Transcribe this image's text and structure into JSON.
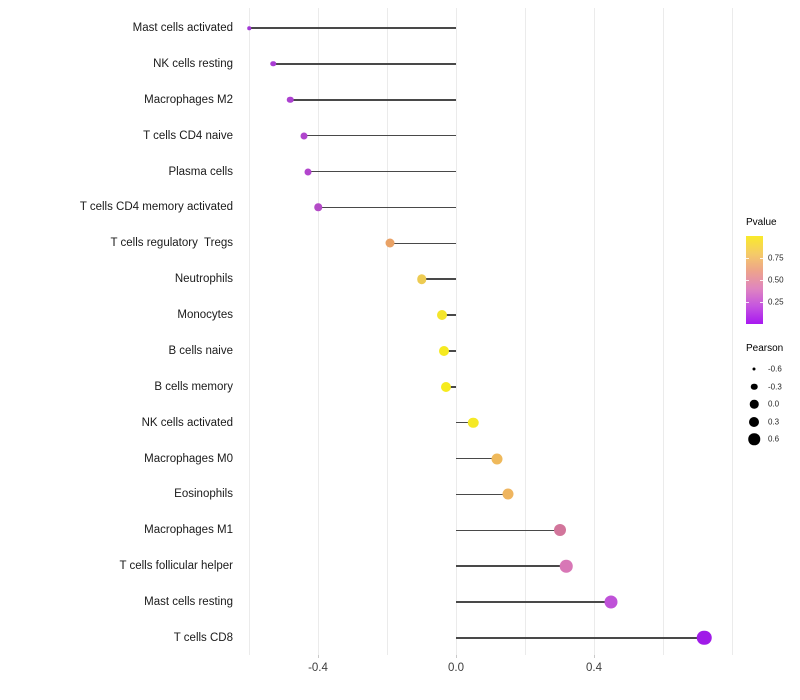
{
  "chart_data": {
    "type": "scatter",
    "variant": "lollipop",
    "title": "",
    "xlabel": "",
    "ylabel": "",
    "grid": "on",
    "xlim": [
      -0.67,
      0.84
    ],
    "x_ticks": [
      "-0.4",
      "0.0",
      "0.4"
    ],
    "x_tick_values": [
      -0.4,
      0.0,
      0.4
    ],
    "x_gridline_values": [
      -0.6,
      -0.4,
      -0.2,
      0.0,
      0.2,
      0.4,
      0.6,
      0.8
    ],
    "baseline_value": 0.0,
    "stem_color": "#3a3a3a",
    "categories": [
      "Mast cells activated",
      "NK cells resting",
      "Macrophages M2",
      "T cells CD4 naive",
      "Plasma cells",
      "T cells CD4 memory activated",
      "T cells regulatory  Tregs",
      "Neutrophils",
      "Monocytes",
      "B cells naive",
      "B cells memory",
      "NK cells activated",
      "Macrophages M0",
      "Eosinophils",
      "Macrophages M1",
      "T cells follicular helper",
      "Mast cells resting",
      "T cells CD8"
    ],
    "points": [
      {
        "label": "Mast cells activated",
        "pearson": -0.6,
        "color": "#A238D6",
        "size": 3.5
      },
      {
        "label": "NK cells resting",
        "pearson": -0.53,
        "color": "#A93CD3",
        "size": 5.5
      },
      {
        "label": "Macrophages M2",
        "pearson": -0.48,
        "color": "#AC40D0",
        "size": 6.5
      },
      {
        "label": "T cells CD4 naive",
        "pearson": -0.44,
        "color": "#B045CD",
        "size": 7
      },
      {
        "label": "Plasma cells",
        "pearson": -0.43,
        "color": "#B245CD",
        "size": 7
      },
      {
        "label": "T cells CD4 memory activated",
        "pearson": -0.4,
        "color": "#B44BC7",
        "size": 7.5
      },
      {
        "label": "T cells regulatory  Tregs",
        "pearson": -0.19,
        "color": "#E9A266",
        "size": 9
      },
      {
        "label": "Neutrophils",
        "pearson": -0.1,
        "color": "#EDCB52",
        "size": 9.5
      },
      {
        "label": "Monocytes",
        "pearson": -0.04,
        "color": "#F4E52B",
        "size": 10
      },
      {
        "label": "B cells naive",
        "pearson": -0.035,
        "color": "#F6EA20",
        "size": 10
      },
      {
        "label": "B cells memory",
        "pearson": -0.03,
        "color": "#F6EB1E",
        "size": 10
      },
      {
        "label": "NK cells activated",
        "pearson": 0.05,
        "color": "#F5E926",
        "size": 10.5
      },
      {
        "label": "Macrophages M0",
        "pearson": 0.12,
        "color": "#EFB95B",
        "size": 11
      },
      {
        "label": "Eosinophils",
        "pearson": 0.15,
        "color": "#EFB55F",
        "size": 11
      },
      {
        "label": "Macrophages M1",
        "pearson": 0.3,
        "color": "#D2759B",
        "size": 12
      },
      {
        "label": "T cells follicular helper",
        "pearson": 0.32,
        "color": "#D877B6",
        "size": 12.5
      },
      {
        "label": "Mast cells resting",
        "pearson": 0.45,
        "color": "#BF52D8",
        "size": 13
      },
      {
        "label": "T cells CD8",
        "pearson": 0.72,
        "color": "#A01BE8",
        "size": 14.5
      }
    ],
    "legend": {
      "position": "right",
      "pvalue": {
        "title": "Pvalue",
        "range": [
          0,
          1
        ],
        "tick_labels": [
          "0.75",
          "0.50",
          "0.25"
        ],
        "tick_values": [
          0.75,
          0.5,
          0.25
        ],
        "gradient_top_to_bottom": [
          "#F9EA2A",
          "#F5CB67",
          "#EDA38C",
          "#DF85C0",
          "#C554E0",
          "#A818F0"
        ]
      },
      "pearson": {
        "title": "Pearson",
        "entries": [
          {
            "label": "-0.6",
            "diameter": 3
          },
          {
            "label": "-0.3",
            "diameter": 6.5
          },
          {
            "label": "0.0",
            "diameter": 8.5
          },
          {
            "label": "0.3",
            "diameter": 10
          },
          {
            "label": "0.6",
            "diameter": 11.5
          }
        ]
      }
    }
  }
}
